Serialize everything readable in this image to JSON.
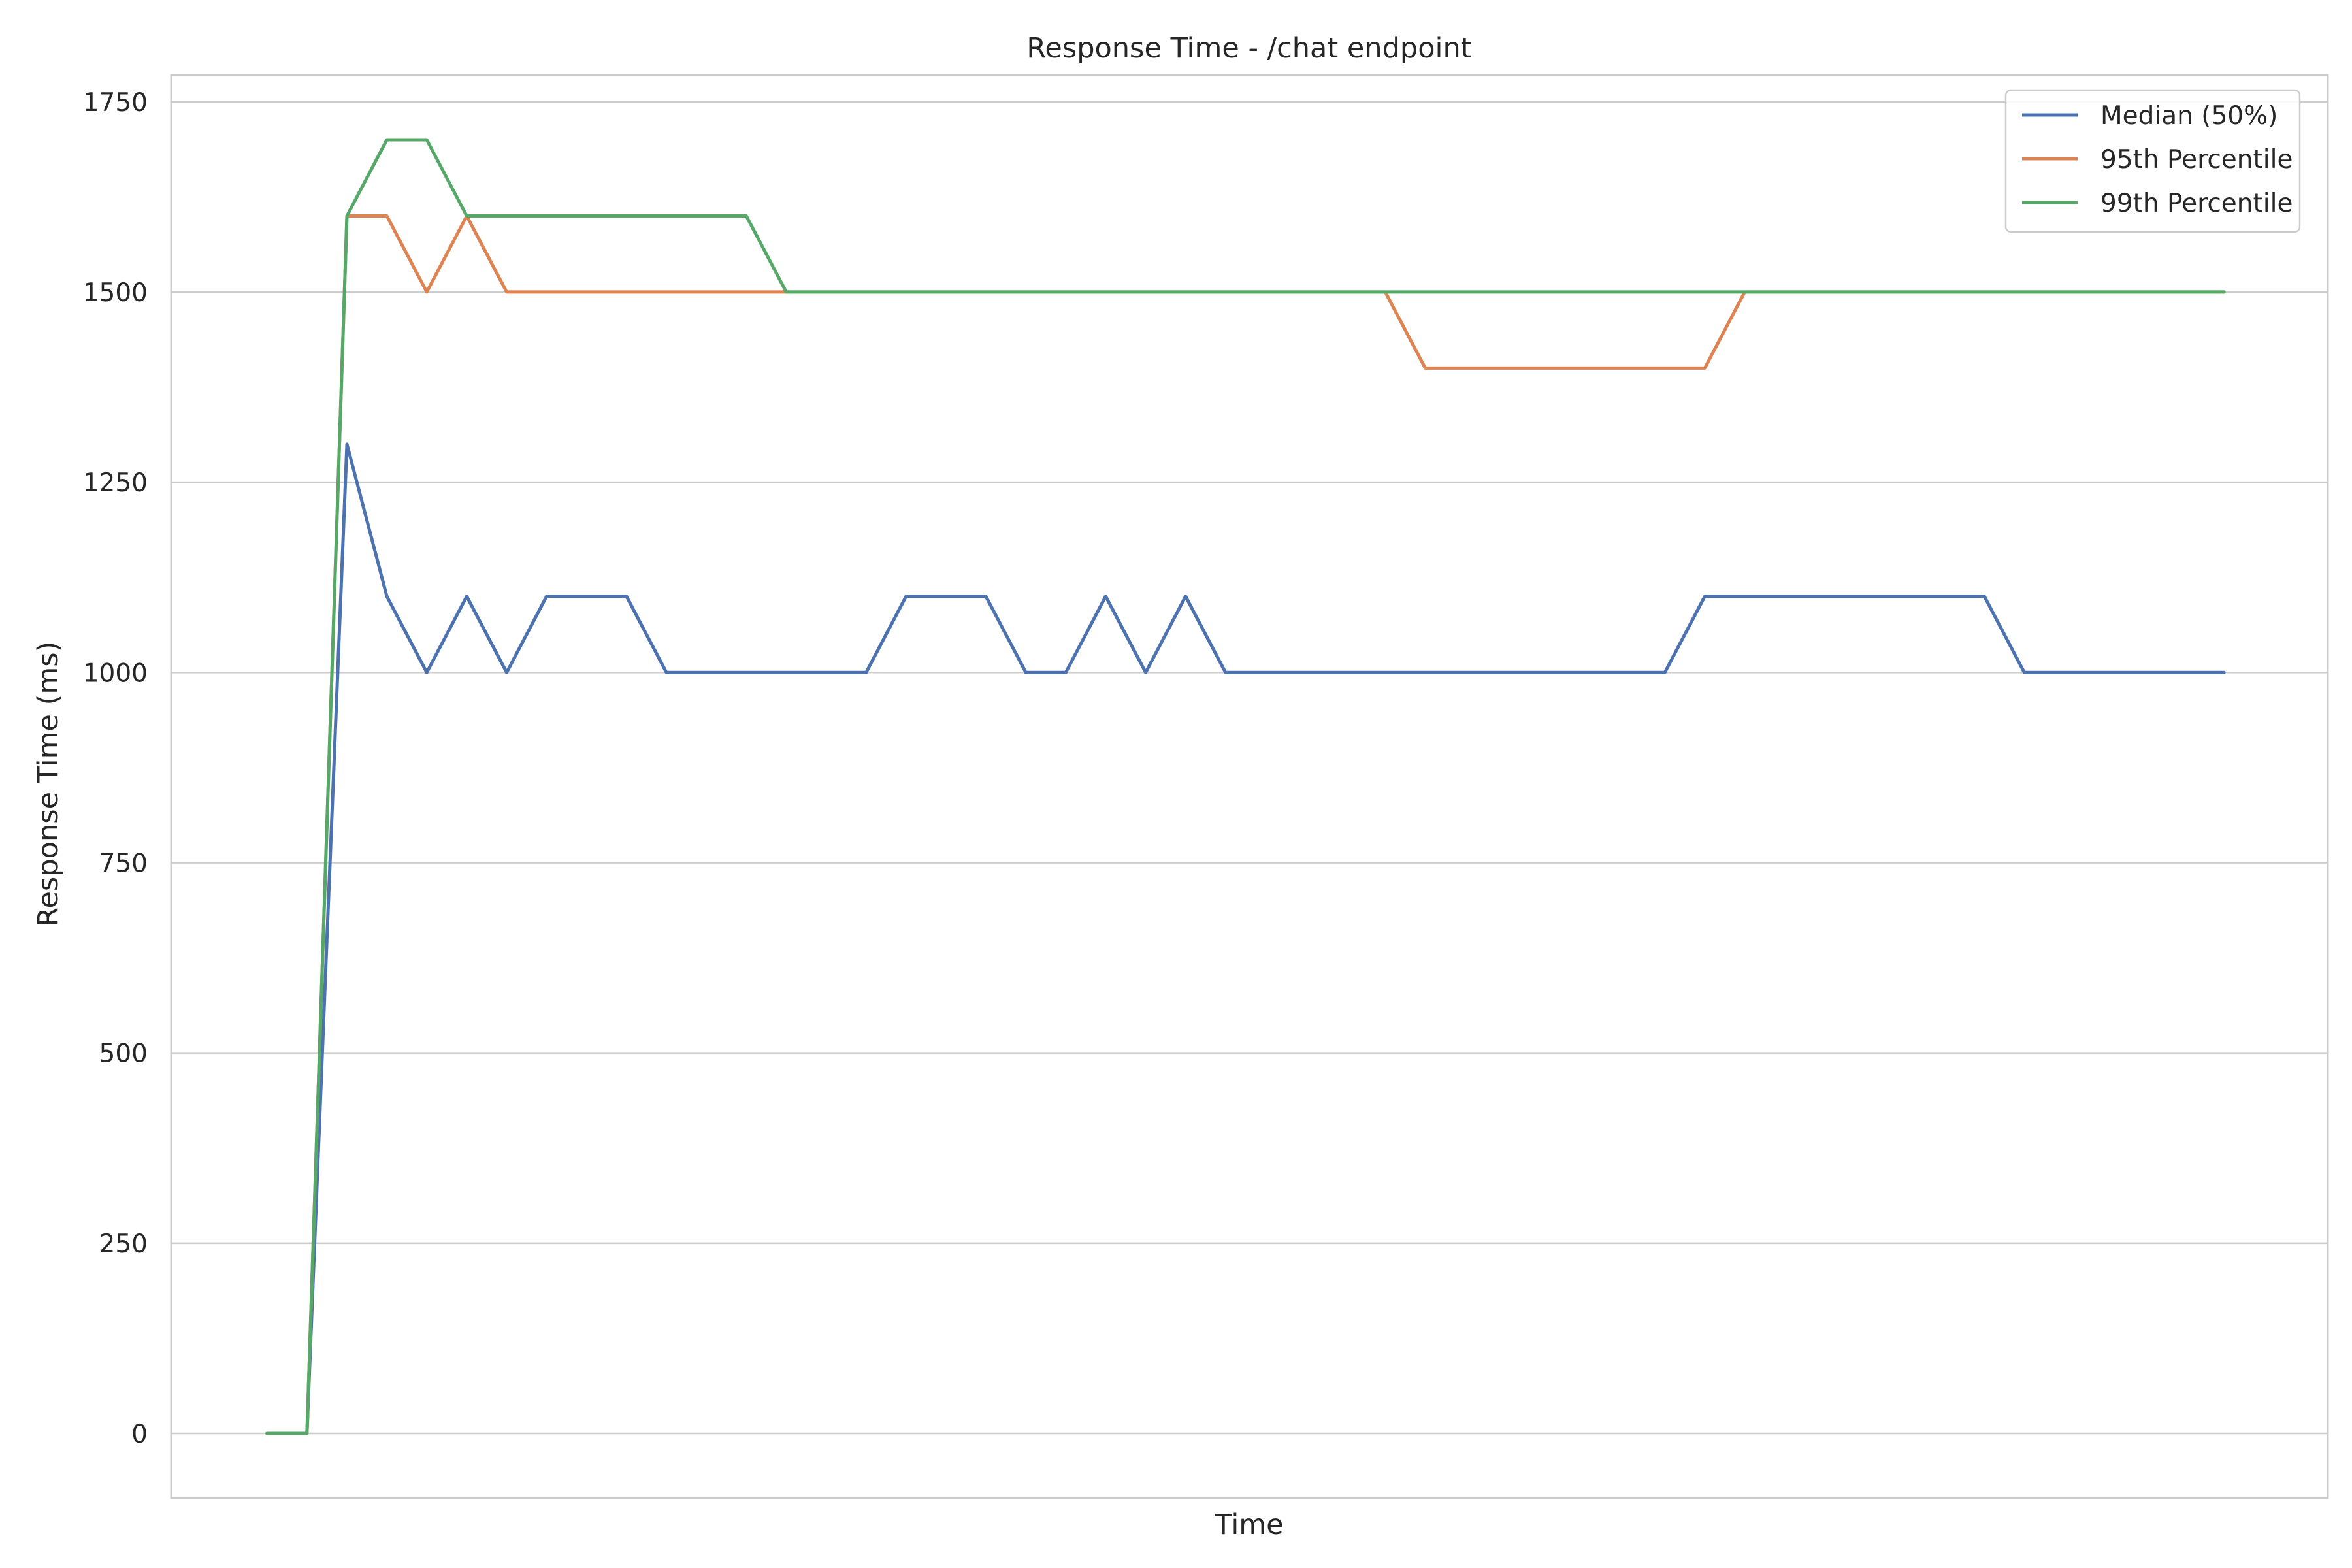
{
  "chart_data": {
    "type": "line",
    "title": "Response Time - /chat endpoint",
    "xlabel": "Time",
    "ylabel": "Response Time (ms)",
    "ylim": [
      -85,
      1785
    ],
    "yticks": [
      0,
      250,
      500,
      750,
      1000,
      1250,
      1500,
      1750
    ],
    "xlim": [
      -2.4,
      51.6
    ],
    "x_tick_labels_shown": false,
    "grid": "horizontal",
    "legend_position": "top-right",
    "x": [
      0,
      1,
      2,
      3,
      4,
      5,
      6,
      7,
      8,
      9,
      10,
      11,
      12,
      13,
      14,
      15,
      16,
      17,
      18,
      19,
      20,
      21,
      22,
      23,
      24,
      25,
      26,
      27,
      28,
      29,
      30,
      31,
      32,
      33,
      34,
      35,
      36,
      37,
      38,
      39,
      40,
      41,
      42,
      43,
      44,
      45,
      46,
      47,
      48,
      49
    ],
    "series": [
      {
        "name": "Median (50%)",
        "color": "#4c72b0",
        "values": [
          0,
          0,
          1300,
          1100,
          1000,
          1100,
          1000,
          1100,
          1100,
          1100,
          1000,
          1000,
          1000,
          1000,
          1000,
          1000,
          1100,
          1100,
          1100,
          1000,
          1000,
          1100,
          1000,
          1100,
          1000,
          1000,
          1000,
          1000,
          1000,
          1000,
          1000,
          1000,
          1000,
          1000,
          1000,
          1000,
          1100,
          1100,
          1100,
          1100,
          1100,
          1100,
          1100,
          1100,
          1000,
          1000,
          1000,
          1000,
          1000,
          1000
        ]
      },
      {
        "name": "95th Percentile",
        "color": "#dd8452",
        "values": [
          0,
          0,
          1600,
          1600,
          1500,
          1600,
          1500,
          1500,
          1500,
          1500,
          1500,
          1500,
          1500,
          1500,
          1500,
          1500,
          1500,
          1500,
          1500,
          1500,
          1500,
          1500,
          1500,
          1500,
          1500,
          1500,
          1500,
          1500,
          1500,
          1400,
          1400,
          1400,
          1400,
          1400,
          1400,
          1400,
          1400,
          1500,
          1500,
          1500,
          1500,
          1500,
          1500,
          1500,
          1500,
          1500,
          1500,
          1500,
          1500,
          1500
        ]
      },
      {
        "name": "99th Percentile",
        "color": "#55a868",
        "values": [
          0,
          0,
          1600,
          1700,
          1700,
          1600,
          1600,
          1600,
          1600,
          1600,
          1600,
          1600,
          1600,
          1500,
          1500,
          1500,
          1500,
          1500,
          1500,
          1500,
          1500,
          1500,
          1500,
          1500,
          1500,
          1500,
          1500,
          1500,
          1500,
          1500,
          1500,
          1500,
          1500,
          1500,
          1500,
          1500,
          1500,
          1500,
          1500,
          1500,
          1500,
          1500,
          1500,
          1500,
          1500,
          1500,
          1500,
          1500,
          1500,
          1500
        ]
      }
    ]
  }
}
